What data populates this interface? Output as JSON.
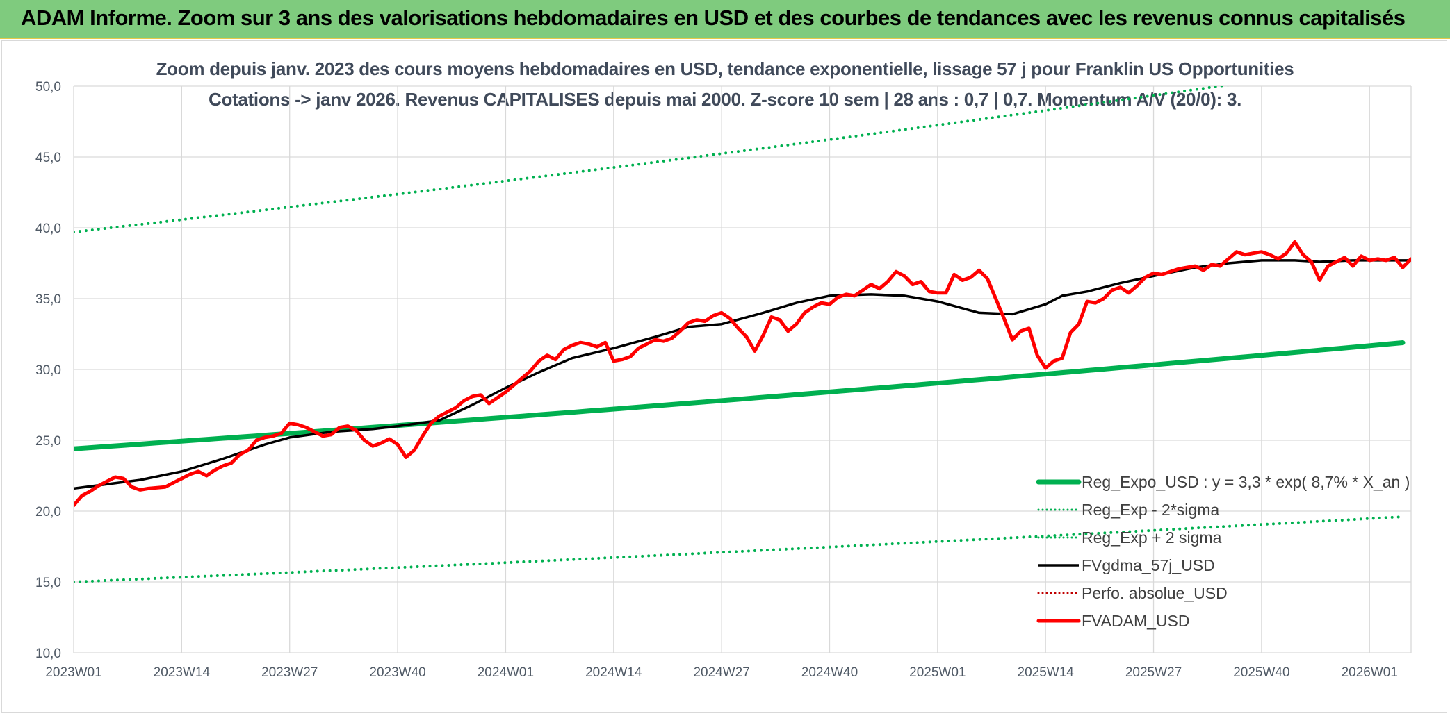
{
  "header": {
    "title": "ADAM Informe. Zoom sur 3 ans des valorisations hebdomadaires en USD et des courbes de tendances avec les revenus connus capitalisés"
  },
  "chart_data": {
    "type": "line",
    "title": "Zoom depuis janv. 2023 des cours moyens hebdomadaires en USD, tendance exponentielle, lissage 57 j pour Franklin US Opportunities",
    "subtitle": "Cotations -> janv 2026. Revenus CAPITALISES depuis mai 2000. Z-score 10 sem | 28 ans : 0,7 | 0,7. Momentum A/V (20/0): 3.",
    "xlabel": "",
    "ylabel": "",
    "ylim": [
      10,
      50
    ],
    "yticks": [
      "10,0",
      "15,0",
      "20,0",
      "25,0",
      "30,0",
      "35,0",
      "40,0",
      "45,0",
      "50,0"
    ],
    "xticks": [
      "2023W01",
      "2023W14",
      "2023W27",
      "2023W40",
      "2024W01",
      "2024W14",
      "2024W27",
      "2024W40",
      "2025W01",
      "2025W14",
      "2025W27",
      "2025W40",
      "2026W01"
    ],
    "x_range_weeks": [
      0,
      161
    ],
    "grid": true,
    "legend_position": "bottom-right",
    "colors": {
      "reg": "#00b050",
      "fvg": "#000000",
      "perfo": "#c00000",
      "adam": "#ff0000"
    },
    "series": [
      {
        "name": "Reg_Expo_USD : y = 3,3 * exp( 8,7% *  X_an )",
        "style": "solid-thick",
        "color": "#00b050",
        "x": [
          0,
          161
        ],
        "growth_per_year": 0.087,
        "values": [
          24.4,
          31.8
        ]
      },
      {
        "name": "Reg_Exp - 2*sigma",
        "style": "dotted",
        "color": "#00b050",
        "x": [
          0,
          161
        ],
        "growth_per_year": 0.087,
        "values": [
          15.0,
          19.6
        ]
      },
      {
        "name": "Reg_Exp + 2 sigma",
        "style": "dotted",
        "color": "#00b050",
        "x": [
          0,
          161
        ],
        "growth_per_year": 0.087,
        "values": [
          39.7,
          51.8
        ]
      },
      {
        "name": "FVgdma_57j_USD",
        "style": "solid",
        "color": "#000000",
        "x": [
          0,
          8,
          13,
          18,
          23,
          26,
          31,
          36,
          39,
          44,
          48,
          52,
          56,
          60,
          65,
          70,
          74,
          78,
          83,
          87,
          91,
          96,
          100,
          104,
          109,
          113,
          117,
          119,
          122,
          126,
          130,
          135,
          139,
          143,
          147,
          150,
          154,
          158,
          161
        ],
        "values": [
          21.6,
          22.2,
          22.8,
          23.7,
          24.7,
          25.2,
          25.6,
          25.8,
          26.0,
          26.4,
          27.5,
          28.7,
          29.8,
          30.8,
          31.5,
          32.3,
          33.0,
          33.2,
          34.0,
          34.7,
          35.2,
          35.3,
          35.2,
          34.8,
          34.0,
          33.9,
          34.6,
          35.2,
          35.5,
          36.1,
          36.6,
          37.2,
          37.5,
          37.7,
          37.7,
          37.6,
          37.7,
          37.7,
          37.7
        ]
      },
      {
        "name": "Perfo. absolue_USD",
        "style": "dotted",
        "color": "#c00000",
        "values": []
      },
      {
        "name": "FVADAM_USD",
        "style": "solid-thick",
        "color": "#ff0000",
        "x": [
          0,
          1,
          2,
          3,
          5,
          6,
          7,
          8,
          9,
          11,
          12,
          13,
          14,
          15,
          16,
          17,
          18,
          19,
          20,
          21,
          22,
          23,
          24,
          25,
          26,
          27,
          28,
          29,
          30,
          31,
          32,
          33,
          34,
          35,
          36,
          37,
          38,
          39,
          40,
          41,
          42,
          43,
          44,
          45,
          46,
          47,
          48,
          49,
          50,
          51,
          52,
          53,
          54,
          55,
          56,
          57,
          58,
          59,
          60,
          61,
          62,
          63,
          64,
          65,
          66,
          67,
          68,
          69,
          70,
          71,
          72,
          73,
          74,
          75,
          76,
          77,
          78,
          79,
          80,
          81,
          82,
          83,
          84,
          85,
          86,
          87,
          88,
          89,
          90,
          91,
          92,
          93,
          94,
          95,
          96,
          97,
          98,
          99,
          100,
          101,
          102,
          103,
          104,
          105,
          106,
          107,
          108,
          109,
          110,
          111,
          112,
          113,
          114,
          115,
          116,
          117,
          118,
          119,
          120,
          121,
          122,
          123,
          124,
          125,
          126,
          127,
          128,
          129,
          130,
          131,
          132,
          133,
          134,
          135,
          136,
          137,
          138,
          139,
          140,
          141,
          142,
          143,
          144,
          145,
          146,
          147,
          148,
          149,
          150,
          151,
          152,
          153,
          154,
          155,
          156,
          157,
          158,
          159,
          160,
          161
        ],
        "values": [
          20.4,
          21.1,
          21.4,
          21.8,
          22.4,
          22.3,
          21.7,
          21.5,
          21.6,
          21.7,
          22.0,
          22.3,
          22.6,
          22.8,
          22.5,
          22.9,
          23.2,
          23.4,
          24.0,
          24.3,
          25.0,
          25.2,
          25.3,
          25.5,
          26.2,
          26.1,
          25.9,
          25.6,
          25.3,
          25.4,
          25.9,
          26.0,
          25.7,
          25.0,
          24.6,
          24.8,
          25.1,
          24.7,
          23.8,
          24.3,
          25.3,
          26.2,
          26.7,
          27.0,
          27.3,
          27.8,
          28.1,
          28.2,
          27.6,
          28.0,
          28.4,
          28.9,
          29.4,
          29.9,
          30.6,
          31.0,
          30.7,
          31.4,
          31.7,
          31.9,
          31.8,
          31.6,
          31.9,
          30.6,
          30.7,
          30.9,
          31.5,
          31.8,
          32.1,
          32.0,
          32.2,
          32.7,
          33.3,
          33.5,
          33.4,
          33.8,
          34.0,
          33.6,
          32.9,
          32.3,
          31.3,
          32.4,
          33.7,
          33.5,
          32.7,
          33.2,
          34.0,
          34.4,
          34.7,
          34.6,
          35.1,
          35.3,
          35.2,
          35.6,
          36.0,
          35.7,
          36.2,
          36.9,
          36.6,
          36.0,
          36.2,
          35.5,
          35.4,
          35.4,
          36.7,
          36.3,
          36.5,
          37.0,
          36.4,
          35.0,
          33.6,
          32.1,
          32.7,
          32.9,
          31.0,
          30.1,
          30.6,
          30.8,
          32.6,
          33.2,
          34.8,
          34.7,
          35.0,
          35.6,
          35.8,
          35.4,
          35.9,
          36.5,
          36.8,
          36.7,
          36.9,
          37.1,
          37.2,
          37.3,
          37.0,
          37.4,
          37.3,
          37.8,
          38.3,
          38.1,
          38.2,
          38.3,
          38.1,
          37.8,
          38.2,
          39.0,
          38.1,
          37.6,
          36.3,
          37.3,
          37.6,
          37.9,
          37.3,
          38.0,
          37.7,
          37.8,
          37.7,
          37.9,
          37.2,
          37.8
        ]
      }
    ]
  }
}
